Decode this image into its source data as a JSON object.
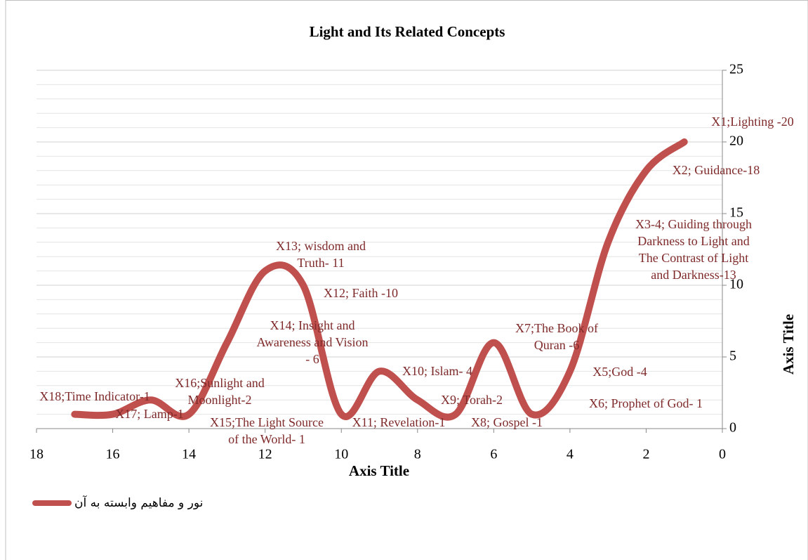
{
  "chart_data": {
    "type": "line",
    "title": "Light and Its Related Concepts",
    "x_label": "Axis Title",
    "y_label": "Axis Title",
    "x": [
      1,
      2,
      3,
      4,
      5,
      6,
      7,
      8,
      9,
      10,
      11,
      12,
      13,
      14,
      15,
      16,
      17
    ],
    "series": [
      {
        "name": "نور و مفاهیم وابسته به آن",
        "color": "#c0504d",
        "values": [
          20,
          18,
          13,
          4,
          1,
          6,
          1,
          2,
          4,
          1,
          10,
          11,
          6,
          1,
          2,
          1,
          1
        ],
        "value_labels": [
          "X1;Lighting -20",
          "X2; Guidance-18",
          "X3-4; Guiding through Darkness to Light and The Contrast of Light and Darkness-13",
          "X5;God -4",
          "X6; Prophet of God- 1",
          "X7;The Book of Quran -6",
          "X8; Gospel -1",
          "X9; Torah-2",
          "X10; Islam- 4",
          "X11; Revelation-1",
          "X12; Faith -10",
          "X13; wisdom and Truth- 11",
          "X14; Insight and Awareness and Vision - 6",
          "X15;The Light Source of the World- 1",
          "X16;Sunlight and Moonlight-2",
          "X17; Lamp-1",
          "X18;Time Indicator-1"
        ]
      }
    ],
    "xlim": [
      18,
      0
    ],
    "xticks": [
      18,
      16,
      14,
      12,
      10,
      8,
      6,
      4,
      2,
      0
    ],
    "ylim": [
      0,
      25
    ],
    "yticks": [
      0,
      5,
      10,
      15,
      20,
      25
    ],
    "y_axis_side": "right",
    "grid": true,
    "minor_grid_step": 1,
    "smooth": true,
    "legend": "bottom-left"
  }
}
